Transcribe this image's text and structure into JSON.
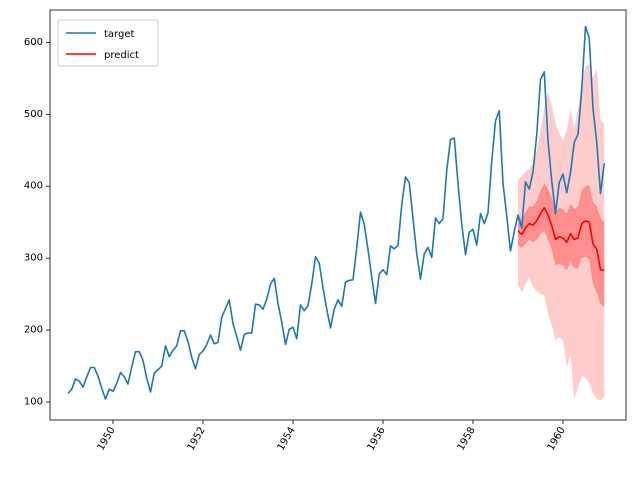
{
  "chart_data": {
    "type": "line",
    "xlim": [
      1948.6,
      1961.4
    ],
    "ylim": [
      75,
      645
    ],
    "x_ticks": [
      1950,
      1952,
      1954,
      1956,
      1958,
      1960
    ],
    "x_tick_labels": [
      "1950",
      "1952",
      "1954",
      "1956",
      "1958",
      "1960"
    ],
    "y_ticks": [
      100,
      200,
      300,
      400,
      500,
      600
    ],
    "y_tick_labels": [
      "100",
      "200",
      "300",
      "400",
      "500",
      "600"
    ],
    "x_tick_rotation_deg": 60,
    "grid": false,
    "legend_position": "top-left",
    "series": [
      {
        "name": "target",
        "color": "#1f77b4",
        "x_start": 1949.0,
        "x_step_months": 1,
        "values": [
          112,
          118,
          132,
          129,
          121,
          135,
          148,
          148,
          136,
          119,
          104,
          118,
          115,
          126,
          141,
          135,
          125,
          149,
          170,
          170,
          158,
          133,
          114,
          140,
          145,
          150,
          178,
          163,
          172,
          178,
          199,
          199,
          184,
          162,
          146,
          166,
          171,
          180,
          193,
          181,
          183,
          218,
          230,
          242,
          209,
          191,
          172,
          194,
          196,
          196,
          236,
          235,
          229,
          243,
          264,
          272,
          237,
          211,
          180,
          201,
          204,
          188,
          235,
          227,
          234,
          264,
          302,
          293,
          259,
          229,
          203,
          229,
          242,
          233,
          267,
          269,
          270,
          315,
          364,
          347,
          312,
          274,
          237,
          278,
          284,
          277,
          317,
          313,
          318,
          374,
          413,
          405,
          355,
          306,
          271,
          306,
          315,
          301,
          356,
          348,
          355,
          422,
          465,
          467,
          404,
          347,
          305,
          336,
          340,
          318,
          362,
          348,
          363,
          435,
          491,
          505,
          404,
          359,
          310,
          337,
          360,
          342,
          406,
          396,
          420,
          472,
          548,
          559,
          463,
          407,
          362,
          405,
          417,
          391,
          419,
          461,
          472,
          535,
          622,
          606,
          508,
          461,
          390,
          432
        ]
      },
      {
        "name": "predict",
        "color": "#ff0000",
        "x_start": 1959.0,
        "x_step_months": 1,
        "values": [
          338,
          333,
          342,
          348,
          346,
          352,
          362,
          370,
          360,
          345,
          326,
          330,
          328,
          322,
          334,
          326,
          328,
          348,
          352,
          350,
          320,
          312,
          284,
          283
        ],
        "band_inner_lower": [
          318,
          314,
          320,
          326,
          322,
          326,
          334,
          338,
          326,
          312,
          290,
          292,
          290,
          283,
          294,
          286,
          286,
          300,
          302,
          298,
          264,
          252,
          236,
          232
        ],
        "band_inner_upper": [
          358,
          354,
          364,
          372,
          372,
          380,
          394,
          404,
          396,
          384,
          364,
          370,
          368,
          362,
          376,
          368,
          372,
          394,
          400,
          402,
          378,
          372,
          356,
          350
        ],
        "band_outer_lower": [
          262,
          252,
          264,
          272,
          260,
          254,
          250,
          248,
          224,
          206,
          186,
          190,
          186,
          148,
          165,
          104,
          120,
          136,
          134,
          126,
          112,
          104,
          102,
          108
        ],
        "band_outer_upper": [
          408,
          414,
          420,
          424,
          432,
          450,
          478,
          508,
          532,
          512,
          488,
          474,
          464,
          478,
          508,
          480,
          506,
          544,
          566,
          570,
          550,
          564,
          492,
          486
        ],
        "band_inner_color": "#ff0000",
        "band_inner_opacity": 0.3,
        "band_outer_color": "#ff0000",
        "band_outer_opacity": 0.2
      }
    ]
  }
}
